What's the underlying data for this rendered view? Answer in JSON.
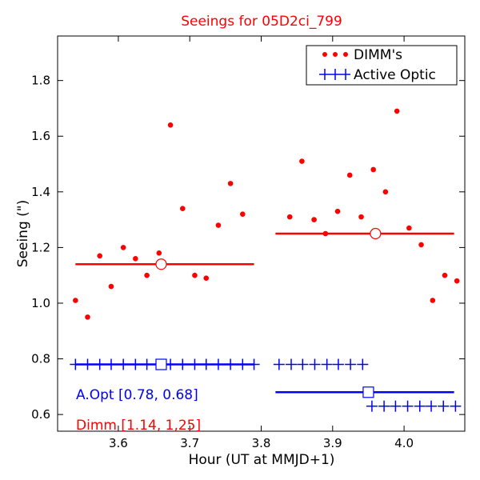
{
  "chart_data": {
    "type": "scatter",
    "title": "Seeings for 05D2ci_799",
    "title_color": "#ff0000",
    "xlabel": "Hour (UT at MMJD+1)",
    "ylabel": "Seeing (\")",
    "xlim": [
      3.515,
      4.085
    ],
    "ylim": [
      0.54,
      1.96
    ],
    "x_ticks": [
      3.6,
      3.7,
      3.8,
      3.9,
      4.0
    ],
    "x_tick_labels": [
      "3.6",
      "3.7",
      "3.8",
      "3.9",
      "4.0"
    ],
    "y_ticks": [
      0.6,
      0.8,
      1.0,
      1.2,
      1.4,
      1.6,
      1.8
    ],
    "y_tick_labels": [
      "0.6",
      "0.8",
      "1.0",
      "1.2",
      "1.4",
      "1.6",
      "1.8"
    ],
    "grid": false,
    "legend": {
      "position": "top-right",
      "entries": [
        {
          "label": "DIMM's",
          "color": "#ff0000",
          "marker": "dot"
        },
        {
          "label": "Active Optic",
          "color": "#0000ff",
          "marker": "plus"
        }
      ]
    },
    "series": [
      {
        "name": "DIMM's",
        "color": "#ff0000",
        "marker": "dot",
        "points": [
          [
            3.54,
            1.01
          ],
          [
            3.557,
            0.95
          ],
          [
            3.574,
            1.17
          ],
          [
            3.59,
            1.06
          ],
          [
            3.607,
            1.2
          ],
          [
            3.624,
            1.16
          ],
          [
            3.64,
            1.1
          ],
          [
            3.657,
            1.18
          ],
          [
            3.673,
            1.64
          ],
          [
            3.69,
            1.34
          ],
          [
            3.707,
            1.1
          ],
          [
            3.723,
            1.09
          ],
          [
            3.74,
            1.28
          ],
          [
            3.757,
            1.43
          ],
          [
            3.774,
            1.32
          ],
          [
            3.84,
            1.31
          ],
          [
            3.857,
            1.51
          ],
          [
            3.874,
            1.3
          ],
          [
            3.89,
            1.25
          ],
          [
            3.907,
            1.33
          ],
          [
            3.924,
            1.46
          ],
          [
            3.94,
            1.31
          ],
          [
            3.957,
            1.48
          ],
          [
            3.974,
            1.4
          ],
          [
            3.99,
            1.69
          ],
          [
            4.007,
            1.27
          ],
          [
            4.024,
            1.21
          ],
          [
            4.04,
            1.01
          ],
          [
            4.057,
            1.1
          ],
          [
            4.074,
            1.08
          ]
        ]
      },
      {
        "name": "Active Optic",
        "color": "#0000ff",
        "marker": "plus",
        "points": [
          [
            3.54,
            0.78
          ],
          [
            3.557,
            0.78
          ],
          [
            3.574,
            0.78
          ],
          [
            3.59,
            0.78
          ],
          [
            3.607,
            0.78
          ],
          [
            3.624,
            0.78
          ],
          [
            3.64,
            0.78
          ],
          [
            3.657,
            0.78
          ],
          [
            3.673,
            0.78
          ],
          [
            3.69,
            0.78
          ],
          [
            3.707,
            0.78
          ],
          [
            3.723,
            0.78
          ],
          [
            3.74,
            0.78
          ],
          [
            3.757,
            0.78
          ],
          [
            3.774,
            0.78
          ],
          [
            3.79,
            0.78
          ],
          [
            3.825,
            0.78
          ],
          [
            3.842,
            0.78
          ],
          [
            3.858,
            0.78
          ],
          [
            3.875,
            0.78
          ],
          [
            3.892,
            0.78
          ],
          [
            3.908,
            0.78
          ],
          [
            3.925,
            0.78
          ],
          [
            3.942,
            0.78
          ],
          [
            3.955,
            0.63
          ],
          [
            3.972,
            0.63
          ],
          [
            3.988,
            0.63
          ],
          [
            4.005,
            0.63
          ],
          [
            4.022,
            0.63
          ],
          [
            4.038,
            0.63
          ],
          [
            4.055,
            0.63
          ],
          [
            4.072,
            0.63
          ]
        ]
      }
    ],
    "mean_lines": [
      {
        "series": "DIMM's",
        "color": "#ff0000",
        "x": [
          3.54,
          3.79
        ],
        "y": 1.14,
        "marker": "circle",
        "marker_x": 3.66
      },
      {
        "series": "DIMM's",
        "color": "#ff0000",
        "x": [
          3.82,
          4.07
        ],
        "y": 1.25,
        "marker": "circle",
        "marker_x": 3.96
      },
      {
        "series": "Active Optic",
        "color": "#0000ff",
        "x": [
          3.54,
          3.79
        ],
        "y": 0.78,
        "marker": "square",
        "marker_x": 3.66
      },
      {
        "series": "Active Optic",
        "color": "#0000ff",
        "x": [
          3.82,
          4.07
        ],
        "y": 0.68,
        "marker": "square",
        "marker_x": 3.95
      }
    ],
    "annotations": [
      {
        "text": "A.Opt [0.78, 0.68]",
        "color": "#0000ff"
      },
      {
        "text": "Dimm [1.14, 1,25]",
        "color": "#ff0000"
      }
    ]
  }
}
